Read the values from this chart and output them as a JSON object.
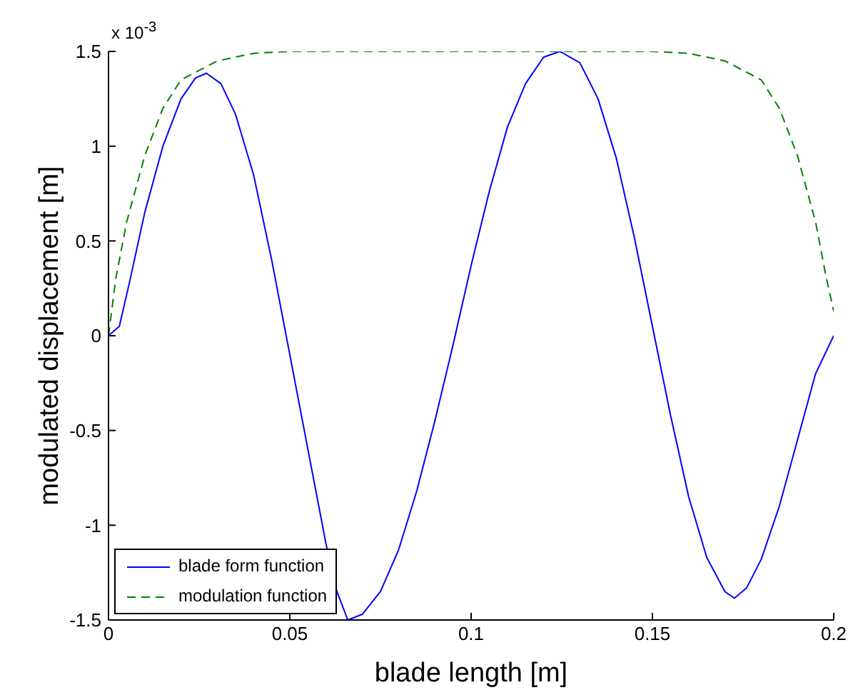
{
  "chart_data": {
    "type": "line",
    "xlabel": "blade length   [m]",
    "ylabel": "modulated displacement   [m]",
    "annotations": [
      "x 10$^{-3}$"
    ],
    "xlim": [
      0,
      0.2
    ],
    "xticks": [
      0,
      0.05,
      0.1,
      0.15,
      0.2
    ],
    "ylim": [
      -1.5,
      1.5
    ],
    "yticks": [
      -1.5,
      -1,
      -0.5,
      0,
      0.5,
      1,
      1.5
    ],
    "grid": false,
    "legend": "bottom left",
    "marker": "none",
    "series": [
      {
        "name": "blade form function",
        "color": "#0000ff",
        "line_style": "solid",
        "x": [
          0,
          0.003,
          0.006,
          0.01,
          0.015,
          0.02,
          0.024,
          0.027,
          0.031,
          0.035,
          0.04,
          0.045,
          0.05,
          0.055,
          0.06,
          0.063,
          0.066,
          0.07,
          0.075,
          0.08,
          0.085,
          0.09,
          0.095,
          0.1,
          0.105,
          0.11,
          0.115,
          0.12,
          0.1245,
          0.13,
          0.135,
          0.14,
          0.145,
          0.15,
          0.155,
          0.16,
          0.165,
          0.17,
          0.1726,
          0.176,
          0.18,
          0.185,
          0.19,
          0.195,
          0.2
        ],
        "values": [
          0,
          0.05,
          0.3,
          0.65,
          1.0,
          1.25,
          1.36,
          1.385,
          1.33,
          1.17,
          0.85,
          0.4,
          -0.1,
          -0.6,
          -1.1,
          -1.35,
          -1.5,
          -1.47,
          -1.35,
          -1.13,
          -0.82,
          -0.45,
          -0.05,
          0.37,
          0.76,
          1.1,
          1.33,
          1.47,
          1.5,
          1.44,
          1.25,
          0.94,
          0.52,
          0.05,
          -0.42,
          -0.85,
          -1.17,
          -1.35,
          -1.385,
          -1.33,
          -1.18,
          -0.9,
          -0.55,
          -0.2,
          0
        ]
      },
      {
        "name": "modulation function",
        "color": "#008000",
        "line_style": "dashed",
        "x": [
          0,
          0.002,
          0.005,
          0.01,
          0.015,
          0.02,
          0.03,
          0.04,
          0.05,
          0.15,
          0.16,
          0.17,
          0.18,
          0.185,
          0.19,
          0.195,
          0.198,
          0.2
        ],
        "values": [
          0,
          0.3,
          0.6,
          0.95,
          1.2,
          1.35,
          1.45,
          1.49,
          1.5,
          1.5,
          1.49,
          1.45,
          1.35,
          1.2,
          0.95,
          0.6,
          0.3,
          0.13
        ]
      }
    ]
  }
}
